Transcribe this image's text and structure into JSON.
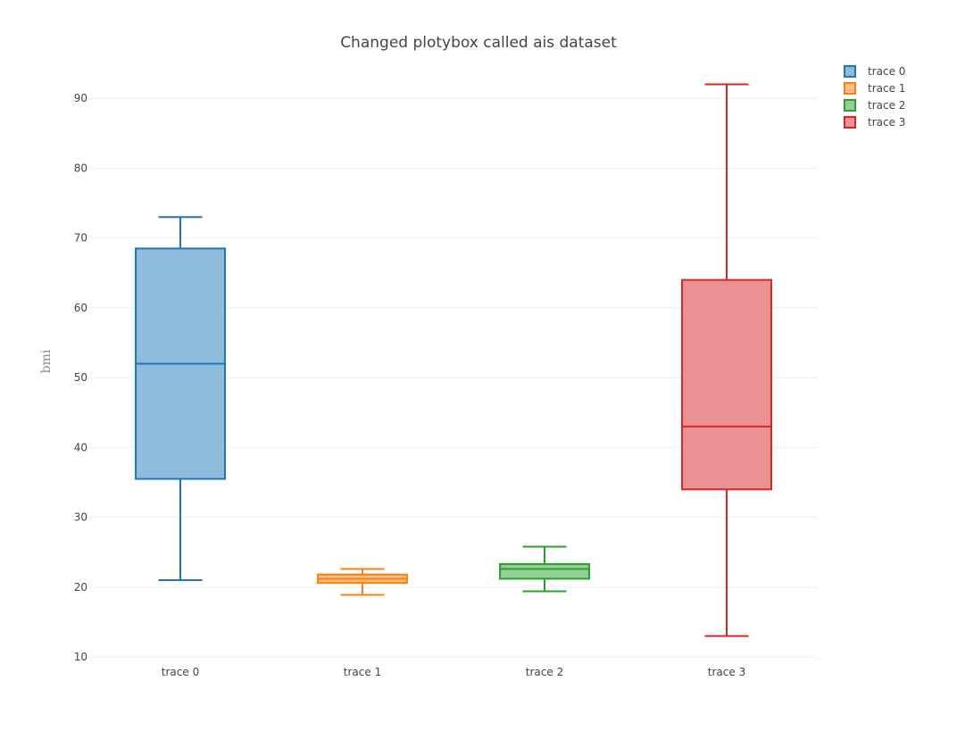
{
  "chart_data": {
    "type": "box",
    "title": "Changed plotybox called ais dataset",
    "xlabel": "",
    "ylabel": "bmi",
    "ylim": [
      9.5,
      94.5
    ],
    "yticks": [
      10,
      20,
      30,
      40,
      50,
      60,
      70,
      80,
      90
    ],
    "grid": true,
    "legend_position": "top-right",
    "categories": [
      "trace 0",
      "trace 1",
      "trace 2",
      "trace 3"
    ],
    "series": [
      {
        "name": "trace 0",
        "color": "#1f77b4",
        "fill": "#8fbbdc",
        "min": 21.0,
        "q1": 35.5,
        "median": 52.0,
        "q3": 68.5,
        "max": 73.0
      },
      {
        "name": "trace 1",
        "color": "#ff7f0e",
        "fill": "#ffbf87",
        "min": 18.9,
        "q1": 20.6,
        "median": 21.2,
        "q3": 21.8,
        "max": 22.6
      },
      {
        "name": "trace 2",
        "color": "#2ca02c",
        "fill": "#95cf95",
        "min": 19.4,
        "q1": 21.2,
        "median": 22.6,
        "q3": 23.3,
        "max": 25.8
      },
      {
        "name": "trace 3",
        "color": "#d62728",
        "fill": "#ea9293",
        "min": 13.0,
        "q1": 34.0,
        "median": 43.0,
        "q3": 64.0,
        "max": 92.0
      }
    ]
  }
}
